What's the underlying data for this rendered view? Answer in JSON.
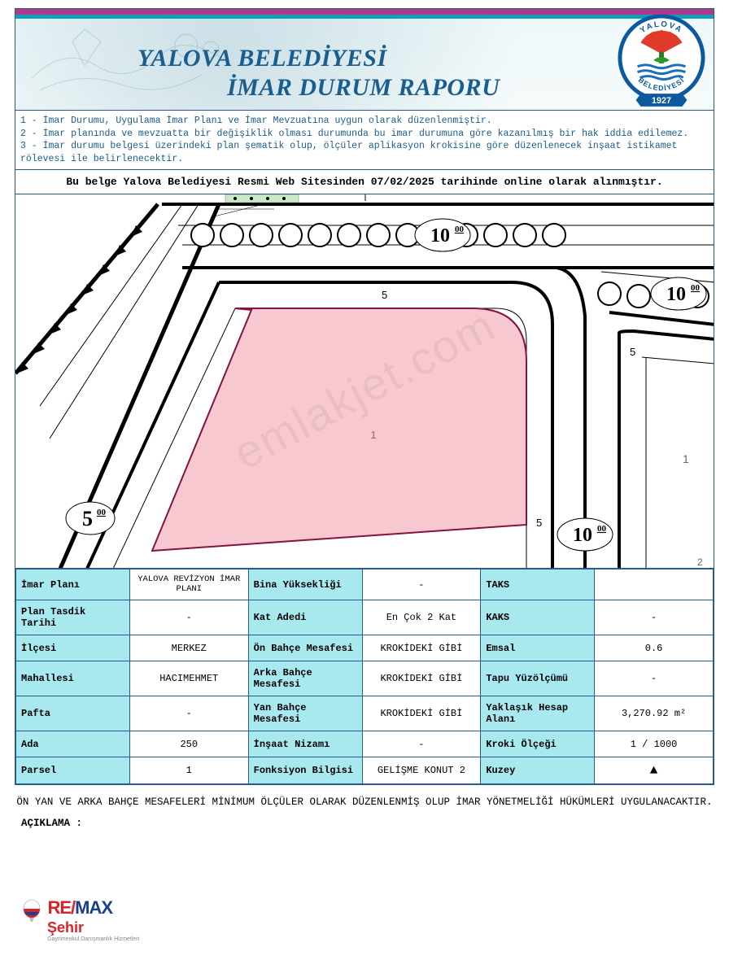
{
  "header": {
    "title_line1": "YALOVA BELEDİYESİ",
    "title_line2": "İMAR DURUM RAPORU",
    "title_color": "#1a5d8f",
    "title_fontsize": 30,
    "stripe_color_top": "#b03a8a",
    "stripe_color_bottom": "#0ea0b8",
    "logo": {
      "ring_text_top": "YALOVA",
      "ring_text_bottom": "BELEDİYESİ",
      "year_badge": "1927",
      "flower_color": "#e03a2a",
      "water_color": "#1a6fb8",
      "ring_color": "#0b5aa0",
      "year_bg": "#0b5aa0"
    }
  },
  "notes": {
    "line1": "1 - İmar Durumu, Uygulama İmar Planı ve İmar Mevzuatına uygun olarak düzenlenmiştir.",
    "line2": "2 - İmar planında ve mevzuatta bir değişiklik olması durumunda bu imar durumuna göre kazanılmış bir hak iddia edilemez.",
    "line3": "3 - İmar durumu belgesi üzerindeki plan şematik olup, ölçüler aplikasyon krokisine göre düzenlenecek inşaat istikamet rölevesi ile belirlenecektir.",
    "color": "#1a5d8f",
    "fontsize": 11.5
  },
  "notice": {
    "text": "Bu belge Yalova Belediyesi Resmi Web Sitesinden 07/02/2025 tarihinde online olarak alınmıştır.",
    "fontsize": 13
  },
  "map": {
    "parcel_fill": "#f7c8cf",
    "parcel_stroke": "#86123d",
    "parcel_stroke_width": 2,
    "road_dim_labels": [
      "10",
      "10",
      "10",
      "5"
    ],
    "dim_sup": "00",
    "parcel_number_main": "1",
    "parcel_number_right": "1",
    "secondary_label": "2",
    "setback_labels": [
      "5",
      "5",
      "5"
    ],
    "tree_circle_fill": "#ffffff",
    "tree_circle_stroke": "#000000",
    "boundary_stroke": "#000000",
    "watermark_text": "emlakjet.com"
  },
  "table": {
    "header_bg": "#a8e8ef",
    "border_color": "#2a5a8a",
    "fontsize": 12,
    "rows": [
      [
        {
          "label": "İmar Planı",
          "value": "YALOVA REVİZYON İMAR PLANI"
        },
        {
          "label": "Bina Yüksekliği",
          "value": "-"
        },
        {
          "label": "TAKS",
          "value": ""
        }
      ],
      [
        {
          "label": "Plan Tasdik Tarihi",
          "value": "-"
        },
        {
          "label": "Kat Adedi",
          "value": "En Çok 2 Kat"
        },
        {
          "label": "KAKS",
          "value": "-"
        }
      ],
      [
        {
          "label": "İlçesi",
          "value": "MERKEZ"
        },
        {
          "label": "Ön Bahçe Mesafesi",
          "value": "KROKİDEKİ GİBİ"
        },
        {
          "label": "Emsal",
          "value": "0.6"
        }
      ],
      [
        {
          "label": "Mahallesi",
          "value": "HACIMEHMET"
        },
        {
          "label": "Arka Bahçe Mesafesi",
          "value": "KROKİDEKİ GİBİ"
        },
        {
          "label": "Tapu Yüzölçümü",
          "value": "-"
        }
      ],
      [
        {
          "label": "Pafta",
          "value": "-"
        },
        {
          "label": "Yan Bahçe Mesafesi",
          "value": "KROKİDEKİ GİBİ"
        },
        {
          "label": "Yaklaşık Hesap Alanı",
          "value": "3,270.92 m²"
        }
      ],
      [
        {
          "label": "Ada",
          "value": "250"
        },
        {
          "label": "İnşaat Nizamı",
          "value": "-"
        },
        {
          "label": "Kroki Ölçeği",
          "value": "1 / 1000"
        }
      ],
      [
        {
          "label": "Parsel",
          "value": "1"
        },
        {
          "label": "Fonksiyon Bilgisi",
          "value": "GELİŞME KONUT 2"
        },
        {
          "label": "Kuzey",
          "value": "▲"
        }
      ]
    ]
  },
  "footer": {
    "note_text": "ÖN YAN VE ARKA BAHÇE MESAFELERİ MİNİMUM ÖLÇÜLER OLARAK DÜZENLENMİŞ OLUP İMAR YÖNETMELİĞİ HÜKÜMLERİ UYGULANACAKTIR.",
    "aciklama_label": "AÇIKLAMA :",
    "fontsize": 12.5
  },
  "brand": {
    "name_part1": "RE",
    "name_slash": "/",
    "name_part2": "MAX",
    "sub": "Şehir",
    "tagline": "Gayrimenkul Danışmanlık Hizmetleri",
    "color_red": "#d8232a",
    "color_blue": "#1a3f8f"
  }
}
